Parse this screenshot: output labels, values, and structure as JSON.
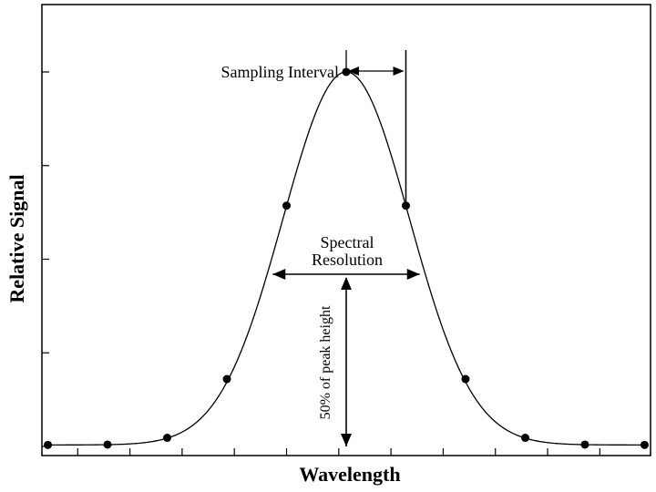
{
  "chart_data": {
    "type": "line",
    "title": "",
    "xlabel": "Wavelength",
    "ylabel": "Relative Signal",
    "xlim": [
      -5.1,
      5.1
    ],
    "ylim": [
      0,
      1.18
    ],
    "grid": false,
    "series": [
      {
        "x": [
          -5.0,
          -4.0,
          -3.0,
          -2.0,
          -1.0,
          0.0,
          1.0,
          2.0,
          3.0,
          4.0,
          5.0
        ],
        "y": [
          0.004,
          0.005,
          0.023,
          0.18,
          0.643,
          1.0,
          0.643,
          0.18,
          0.023,
          0.005,
          0.004
        ]
      }
    ],
    "annotations": {
      "sampling_interval": "Sampling Interval",
      "spectral_resolution_line1": "Spectral",
      "spectral_resolution_line2": "Resolution",
      "half_height": "50% of peak height"
    }
  }
}
